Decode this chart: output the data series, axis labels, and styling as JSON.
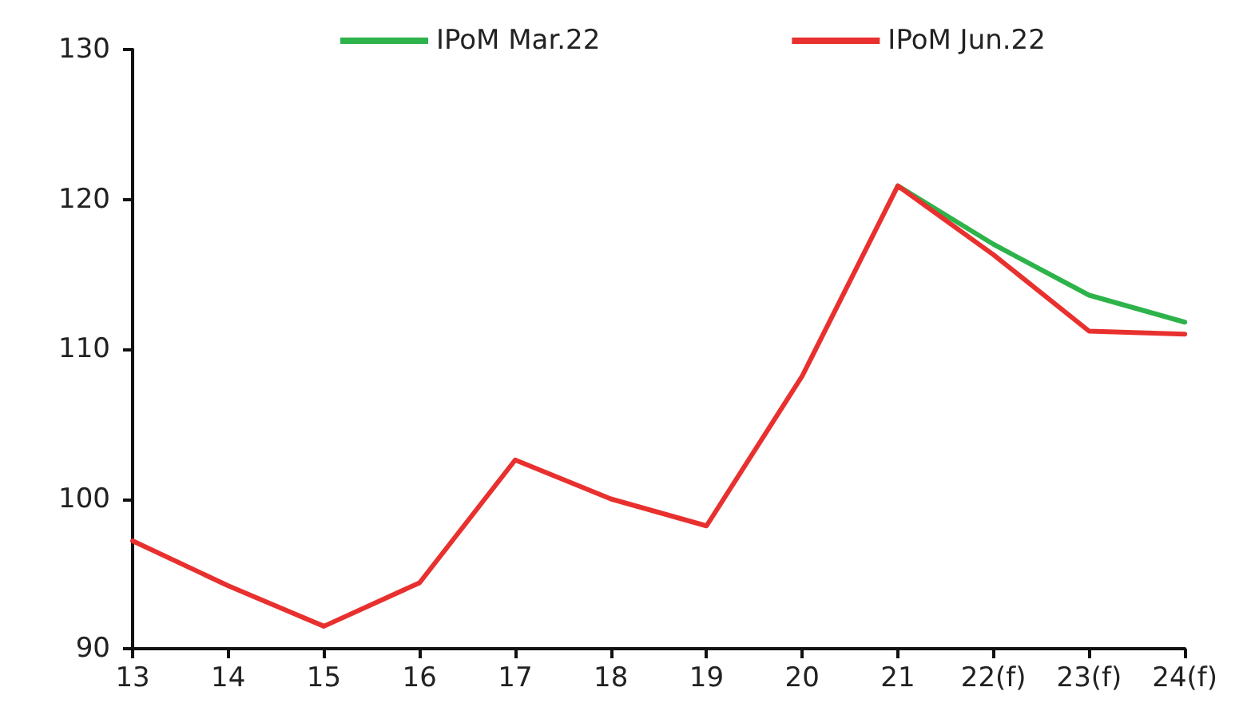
{
  "chart_data": {
    "type": "line",
    "categories": [
      "13",
      "14",
      "15",
      "16",
      "17",
      "18",
      "19",
      "20",
      "21",
      "22(f)",
      "23(f)",
      "24(f)"
    ],
    "series": [
      {
        "name": "IPoM Mar.22",
        "color": "#2db34a",
        "values": [
          null,
          null,
          null,
          null,
          null,
          null,
          null,
          null,
          120.9,
          117.0,
          113.6,
          111.8
        ]
      },
      {
        "name": "IPoM Jun.22",
        "color": "#e8312f",
        "values": [
          97.2,
          94.2,
          91.5,
          94.4,
          102.6,
          100.0,
          98.2,
          108.2,
          120.9,
          116.3,
          111.2,
          111.0
        ]
      }
    ],
    "ylim": [
      90,
      130
    ],
    "yticks": [
      90,
      100,
      110,
      120,
      130
    ],
    "grid": false,
    "legend": "top",
    "marker": "none",
    "line_style": "solid"
  }
}
